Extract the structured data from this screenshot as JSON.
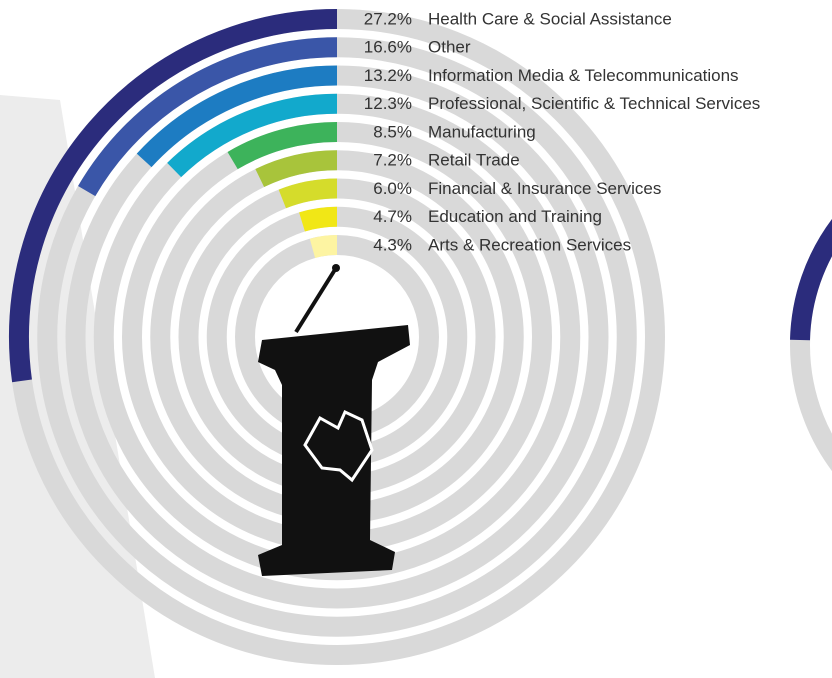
{
  "chart_data": {
    "type": "radial_bar",
    "categories": [
      "Health Care & Social Assistance",
      "Other",
      "Information Media & Telecommunications",
      "Professional, Scientific & Technical Services",
      "Manufacturing",
      "Retail Trade",
      "Financial & Insurance Services",
      "Education and Training",
      "Arts & Recreation Services"
    ],
    "values": [
      27.2,
      16.6,
      13.2,
      12.3,
      8.5,
      7.2,
      6.0,
      4.7,
      4.3
    ],
    "value_labels": [
      "27.2%",
      "16.6%",
      "13.2%",
      "12.3%",
      "8.5%",
      "7.2%",
      "6.0%",
      "4.7%",
      "4.3%"
    ],
    "colors": [
      "#2b2c7c",
      "#3a56a8",
      "#1d7cc2",
      "#12a9cc",
      "#3db35b",
      "#a8c43b",
      "#d5dc2b",
      "#f1e716",
      "#fdf4a2"
    ],
    "range": [
      0,
      100
    ]
  }
}
